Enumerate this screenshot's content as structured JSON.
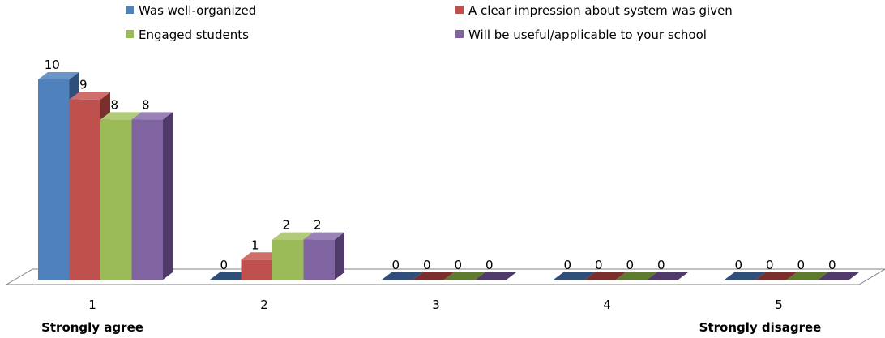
{
  "chart_data": {
    "type": "bar",
    "categories": [
      "1",
      "2",
      "3",
      "4",
      "5"
    ],
    "series": [
      {
        "name": "Was well-organized",
        "values": [
          10,
          0,
          0,
          0,
          0
        ]
      },
      {
        "name": "A clear impression about system was given",
        "values": [
          9,
          1,
          0,
          0,
          0
        ]
      },
      {
        "name": "Engaged students",
        "values": [
          8,
          2,
          0,
          0,
          0
        ]
      },
      {
        "name": "Will be useful/applicable to your school",
        "values": [
          8,
          2,
          0,
          0,
          0
        ]
      }
    ],
    "scale_labels": {
      "low": "Strongly agree",
      "high": "Strongly disagree"
    },
    "ylim": [
      0,
      10
    ],
    "grid": false,
    "legend_position": "top",
    "render": "3d-clustered-column",
    "colors": [
      "#4F81BD",
      "#C0504D",
      "#9BBB59",
      "#8064A2"
    ],
    "colors_dark": [
      "#2F4F7A",
      "#7A2F2D",
      "#5E7A30",
      "#4F3A6A"
    ],
    "colors_top": [
      "#6A94CA",
      "#CF6E6B",
      "#B1CB7A",
      "#9A82B8"
    ]
  }
}
